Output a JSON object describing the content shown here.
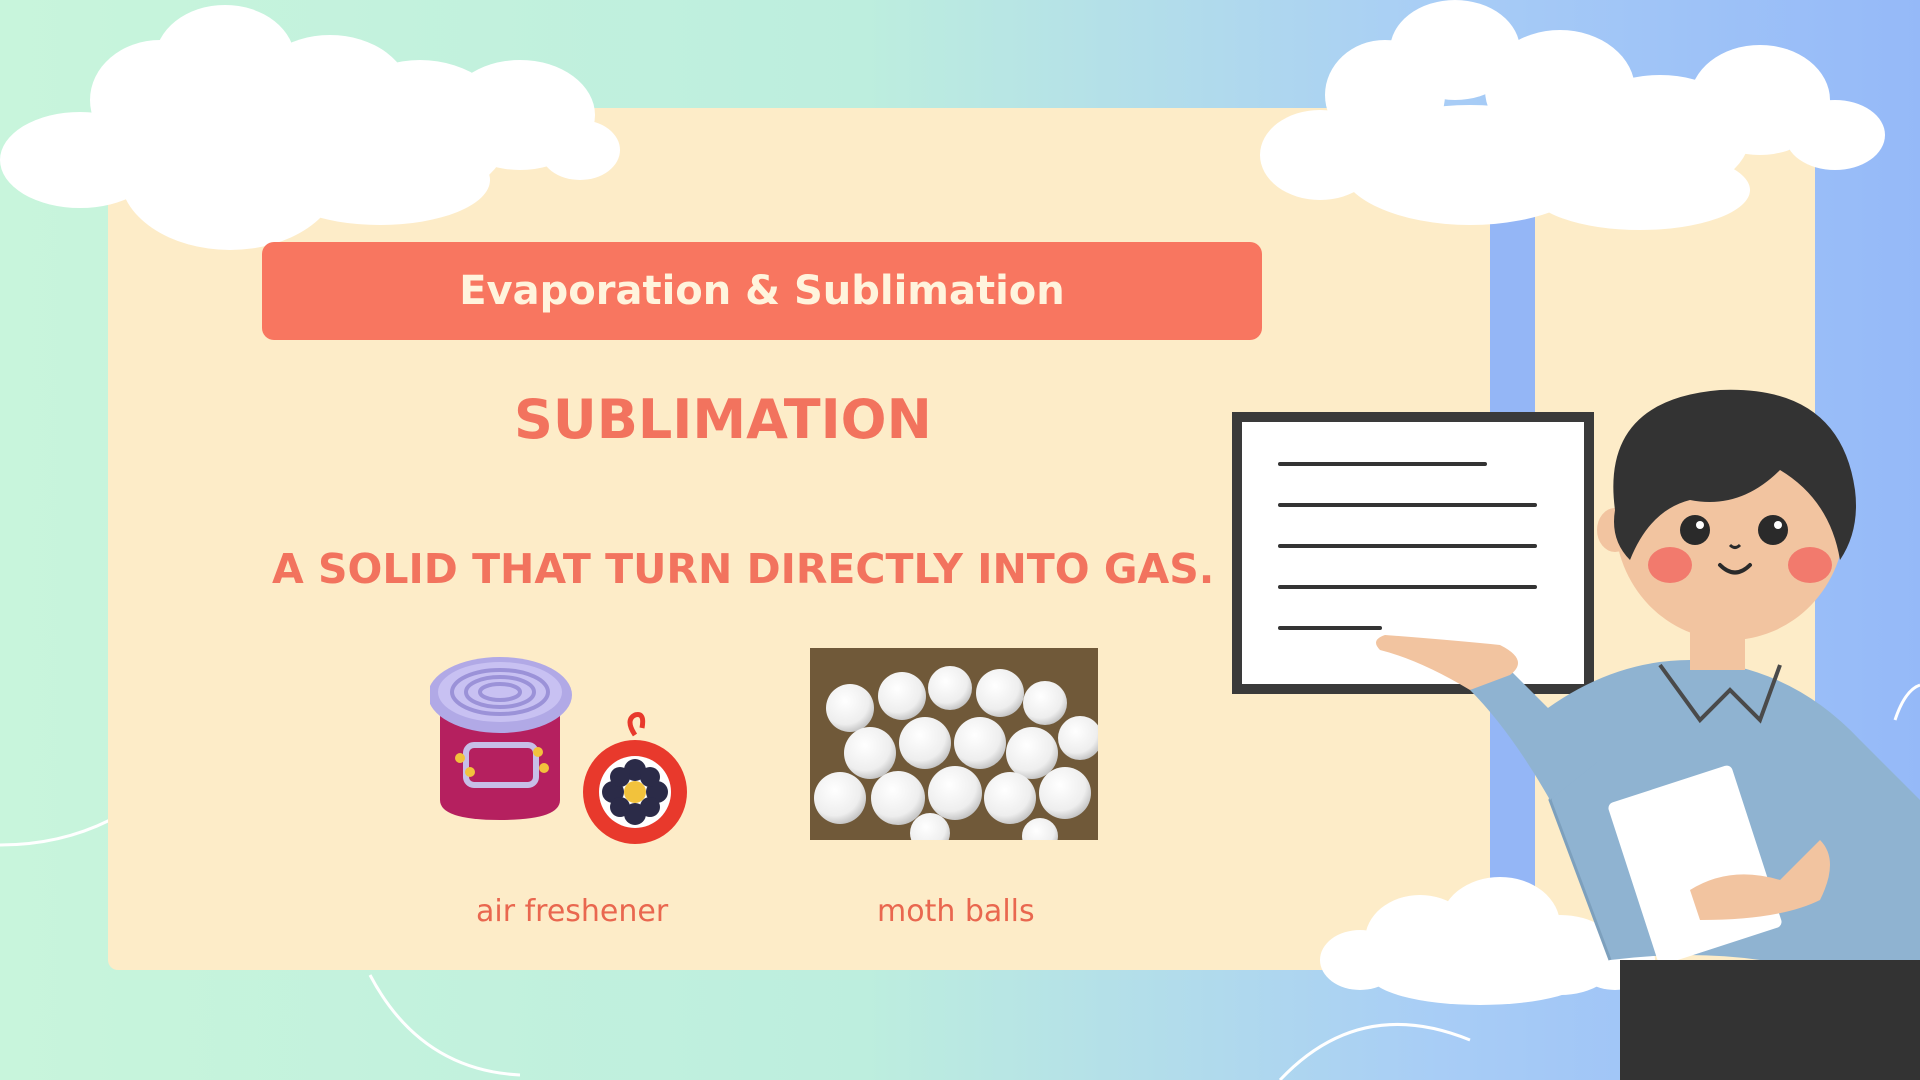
{
  "slide": {
    "banner": "Evaporation & Sublimation",
    "heading": "SUBLIMATION",
    "definition": "A SOLID THAT TURN DIRECTLY INTO GAS.",
    "examples": [
      {
        "caption": "air freshener",
        "icon": "air-freshener-icon"
      },
      {
        "caption": "moth balls",
        "icon": "moth-balls-photo"
      }
    ]
  },
  "colors": {
    "accent": "#f87660",
    "panel": "#fdecc8",
    "bg_left": "#c8f5dc",
    "bg_right": "#9bbcf7"
  }
}
